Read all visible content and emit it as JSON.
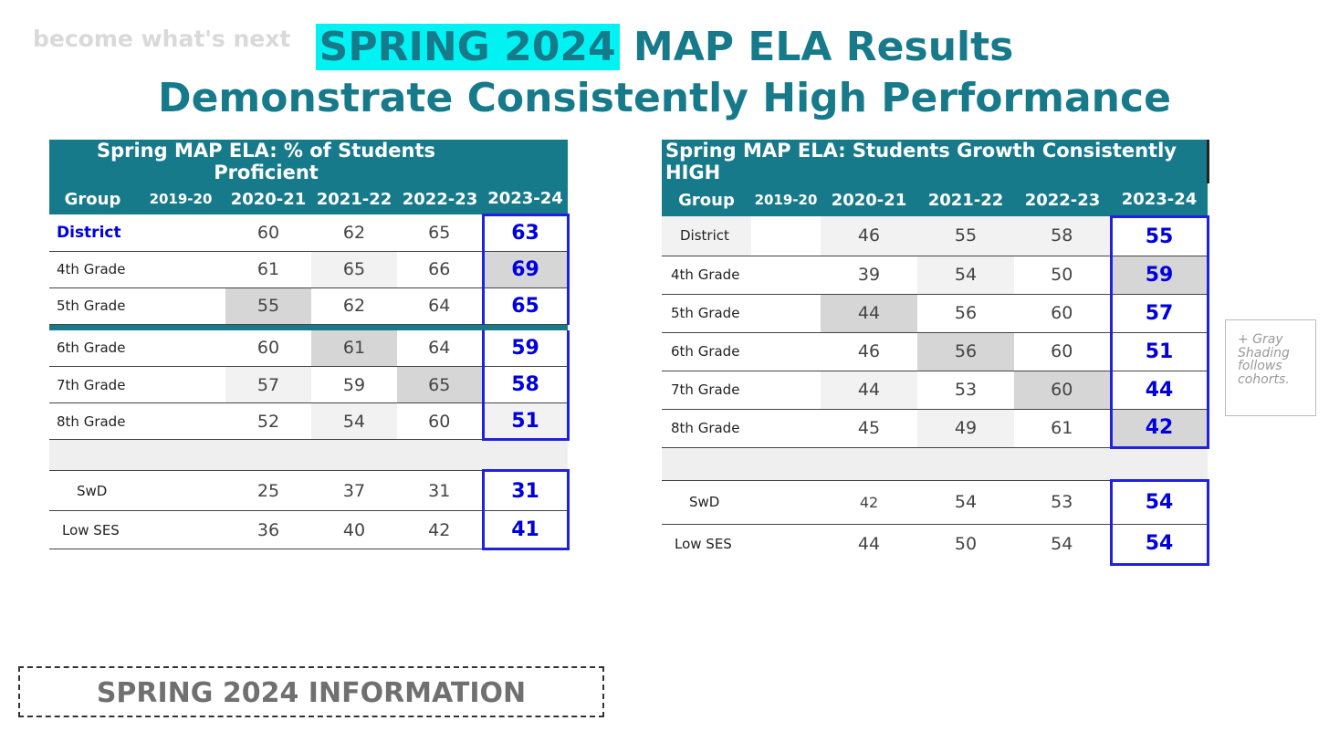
{
  "tagline": "become what's next",
  "title": {
    "highlight": "SPRING 2024",
    "line1_rest": " MAP ELA Results",
    "line2": "Demonstrate Consistently High Performance"
  },
  "left_table": {
    "caption": "Spring  MAP  ELA: % of Students  Proficient",
    "columns": [
      "Group",
      "2019-20",
      "2020-21",
      "2021-22",
      "2022-23",
      "2023-24"
    ],
    "rows": [
      {
        "group": "District",
        "v2019": "",
        "v2020": "60",
        "v2021": "62",
        "v2022": "65",
        "v2023": "63"
      },
      {
        "group": "4th Grade",
        "v2019": "",
        "v2020": "61",
        "v2021": "65",
        "v2022": "66",
        "v2023": "69"
      },
      {
        "group": "5th Grade",
        "v2019": "",
        "v2020": "55",
        "v2021": "62",
        "v2022": "64",
        "v2023": "65"
      },
      {
        "group": "6th Grade",
        "v2019": "",
        "v2020": "60",
        "v2021": "61",
        "v2022": "64",
        "v2023": "59"
      },
      {
        "group": "7th Grade",
        "v2019": "",
        "v2020": "57",
        "v2021": "59",
        "v2022": "65",
        "v2023": "58"
      },
      {
        "group": "8th Grade",
        "v2019": "",
        "v2020": "52",
        "v2021": "54",
        "v2022": "60",
        "v2023": "51"
      },
      {
        "group": "SwD",
        "v2019": "",
        "v2020": "25",
        "v2021": "37",
        "v2022": "31",
        "v2023": "31"
      },
      {
        "group": "Low SES",
        "v2019": "",
        "v2020": "36",
        "v2021": "40",
        "v2022": "42",
        "v2023": "41"
      }
    ]
  },
  "right_table": {
    "caption": "Spring  MAP  ELA: Students Growth Consistently  HIGH",
    "columns": [
      "Group",
      "2019-20",
      "2020-21",
      "2021-22",
      "2022-23",
      "2023-24"
    ],
    "rows": [
      {
        "group": "District",
        "v2019": "",
        "v2020": "46",
        "v2021": "55",
        "v2022": "58",
        "v2023": "55"
      },
      {
        "group": "4th Grade",
        "v2019": "",
        "v2020": "39",
        "v2021": "54",
        "v2022": "50",
        "v2023": "59"
      },
      {
        "group": "5th Grade",
        "v2019": "",
        "v2020": "44",
        "v2021": "56",
        "v2022": "60",
        "v2023": "57"
      },
      {
        "group": "6th Grade",
        "v2019": "",
        "v2020": "46",
        "v2021": "56",
        "v2022": "60",
        "v2023": "51"
      },
      {
        "group": "7th Grade",
        "v2019": "",
        "v2020": "44",
        "v2021": "53",
        "v2022": "60",
        "v2023": "44"
      },
      {
        "group": "8th Grade",
        "v2019": "",
        "v2020": "45",
        "v2021": "49",
        "v2022": "61",
        "v2023": "42"
      },
      {
        "group": "SwD",
        "v2019": "",
        "v2020": "42",
        "v2021": "54",
        "v2022": "53",
        "v2023": "54"
      },
      {
        "group": "Low SES",
        "v2019": "",
        "v2020": "44",
        "v2021": "50",
        "v2022": "54",
        "v2023": "54"
      }
    ]
  },
  "note": "+ Gray Shading follows cohorts.",
  "info_box": "SPRING 2024 INFORMATION",
  "colors": {
    "teal": "#177a8a",
    "highlight": "#00f2f2",
    "blue_value": "#0000dd"
  }
}
